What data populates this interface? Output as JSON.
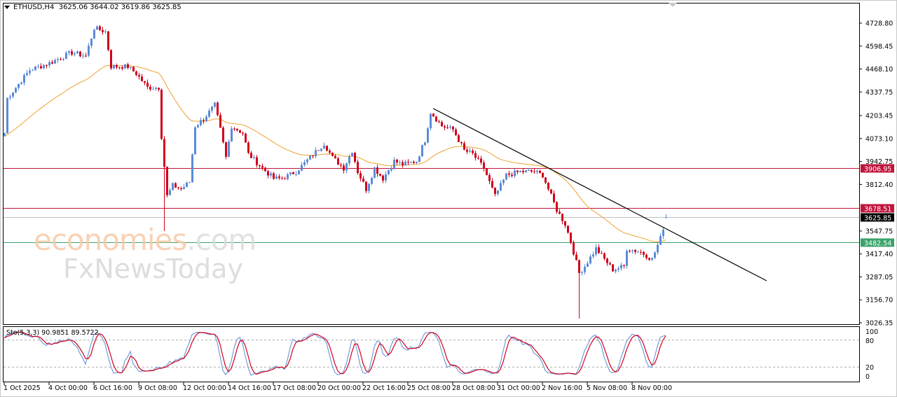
{
  "header": {
    "symbol": "ETHUSD,H4",
    "ohlc": "3625.06 3644.02 3619.86 3625.85"
  },
  "stochastic": {
    "label": "Sto(5,3,3) 90.9851 89.5722",
    "levels": [
      "100",
      "80",
      "20",
      "0"
    ]
  },
  "watermark": {
    "brand1": "economies",
    "brand1_suffix": ".com",
    "brand2": "FxNewsToday"
  },
  "colors": {
    "bull": "#5b8bd6",
    "bear": "#d0021b",
    "ma": "#f0a030",
    "resistance": "#c0143c",
    "support": "#3aa36a",
    "current": "#000000",
    "trendline": "#000000",
    "stoch_main": "#5b8bd6",
    "stoch_signal": "#d0021b"
  },
  "chart_data": {
    "type": "candlestick",
    "title": "ETHUSD,H4",
    "timeframe": "H4",
    "ylim": [
      3026.35,
      4728.8
    ],
    "y_ticks": [
      "4728.80",
      "4598.45",
      "4468.10",
      "4337.75",
      "4203.45",
      "4073.10",
      "3942.75",
      "3812.40",
      "3547.75",
      "3417.40",
      "3287.05",
      "3156.70",
      "3026.35"
    ],
    "x_ticks": [
      "1 Oct 2025",
      "4 Oct 00:00",
      "6 Oct 16:00",
      "9 Oct 08:00",
      "12 Oct 00:00",
      "14 Oct 16:00",
      "17 Oct 08:00",
      "20 Oct 00:00",
      "22 Oct 16:00",
      "25 Oct 08:00",
      "28 Oct 08:00",
      "31 Oct 00:00",
      "2 Nov 16:00",
      "5 Nov 08:00",
      "8 Nov 00:00"
    ],
    "close_keypoints_bar_price": [
      [
        0,
        4104
      ],
      [
        1,
        4303
      ],
      [
        9,
        4462
      ],
      [
        16,
        4502
      ],
      [
        24,
        4562
      ],
      [
        29,
        4542
      ],
      [
        32,
        4701
      ],
      [
        36,
        4681
      ],
      [
        38,
        4482
      ],
      [
        44,
        4482
      ],
      [
        47,
        4442
      ],
      [
        51,
        4363
      ],
      [
        55,
        4363
      ],
      [
        56,
        4084
      ],
      [
        58,
        3746
      ],
      [
        60,
        3806
      ],
      [
        63,
        3786
      ],
      [
        66,
        3826
      ],
      [
        68,
        4144
      ],
      [
        71,
        4184
      ],
      [
        75,
        4263
      ],
      [
        77,
        4124
      ],
      [
        79,
        3965
      ],
      [
        81,
        4144
      ],
      [
        85,
        4104
      ],
      [
        87,
        3985
      ],
      [
        92,
        3905
      ],
      [
        96,
        3846
      ],
      [
        99,
        3846
      ],
      [
        104,
        3885
      ],
      [
        109,
        3965
      ],
      [
        114,
        4045
      ],
      [
        117,
        3965
      ],
      [
        121,
        3905
      ],
      [
        124,
        4005
      ],
      [
        126,
        3885
      ],
      [
        129,
        3786
      ],
      [
        132,
        3905
      ],
      [
        135,
        3846
      ],
      [
        139,
        3945
      ],
      [
        142,
        3925
      ],
      [
        147,
        3945
      ],
      [
        150,
        4064
      ],
      [
        152,
        4224
      ],
      [
        156,
        4144
      ],
      [
        160,
        4124
      ],
      [
        164,
        4005
      ],
      [
        167,
        3985
      ],
      [
        171,
        3905
      ],
      [
        175,
        3746
      ],
      [
        179,
        3865
      ],
      [
        184,
        3885
      ],
      [
        189,
        3885
      ],
      [
        192,
        3865
      ],
      [
        195,
        3746
      ],
      [
        197,
        3667
      ],
      [
        200,
        3587
      ],
      [
        202,
        3488
      ],
      [
        205,
        3309
      ],
      [
        207,
        3348
      ],
      [
        211,
        3448
      ],
      [
        214,
        3388
      ],
      [
        217,
        3328
      ],
      [
        221,
        3348
      ],
      [
        222,
        3448
      ],
      [
        227,
        3428
      ],
      [
        231,
        3388
      ],
      [
        234,
        3507
      ],
      [
        236,
        3625.85
      ]
    ],
    "notable_lows": [
      {
        "bar": 57,
        "low": 3547
      },
      {
        "bar": 205,
        "low": 3050
      }
    ],
    "last_bar": {
      "open": 3625.06,
      "high": 3644.02,
      "low": 3619.86,
      "close": 3625.85
    },
    "horizontal_levels": [
      {
        "price": 3906.95,
        "label": "3906.95",
        "role": "resistance"
      },
      {
        "price": 3678.51,
        "label": "3678.51",
        "role": "resistance"
      },
      {
        "price": 3625.85,
        "label": "3625.85",
        "role": "current"
      },
      {
        "price": 3482.54,
        "label": "3482.54",
        "role": "support"
      }
    ],
    "trendline": {
      "from": {
        "bar": 153,
        "price": 4244
      },
      "to": {
        "bar": 272,
        "price": 3265
      }
    },
    "moving_average": {
      "type": "EMA",
      "color": "orange"
    },
    "stochastic": {
      "k": 5,
      "d": 3,
      "slowing": 3,
      "main": 90.9851,
      "signal": 89.5722,
      "levels": [
        80,
        20
      ],
      "range": [
        0,
        100
      ]
    },
    "grid": false
  }
}
